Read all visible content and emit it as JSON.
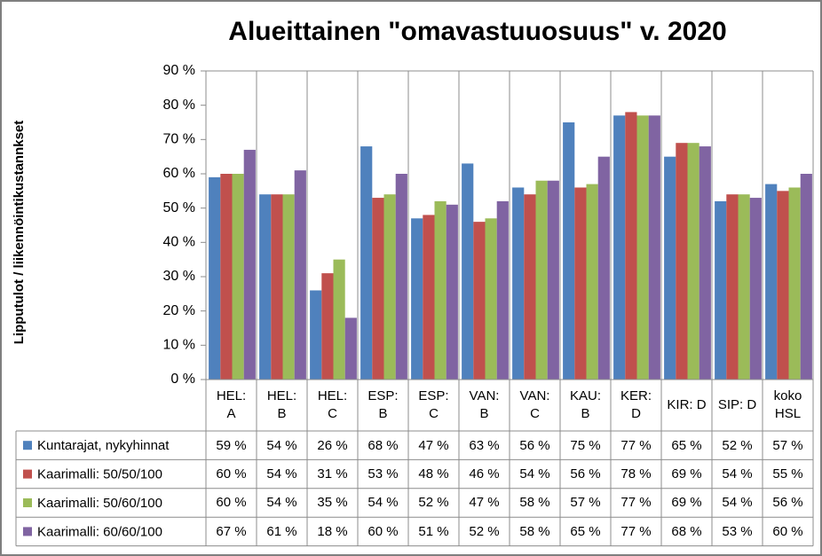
{
  "chart_data": {
    "type": "bar",
    "title": "Alueittainen \"omavastuuosuus\" v. 2020",
    "y_label": "Lipputulot / liikennöintikustannkset",
    "categories": [
      "HEL: A",
      "HEL: B",
      "HEL: C",
      "ESP: B",
      "ESP: C",
      "VAN: B",
      "VAN: C",
      "KAU: B",
      "KER: D",
      "KIR: D",
      "SIP: D",
      "koko HSL"
    ],
    "ylim": [
      0,
      90
    ],
    "yticks": [
      {
        "value": 0,
        "label": "0 %"
      },
      {
        "value": 10,
        "label": "10 %"
      },
      {
        "value": 20,
        "label": "20 %"
      },
      {
        "value": 30,
        "label": "30 %"
      },
      {
        "value": 40,
        "label": "40 %"
      },
      {
        "value": 50,
        "label": "50 %"
      },
      {
        "value": 60,
        "label": "60 %"
      },
      {
        "value": 70,
        "label": "70 %"
      },
      {
        "value": 80,
        "label": "80 %"
      },
      {
        "value": 90,
        "label": "90 %"
      }
    ],
    "series": [
      {
        "name": "Kuntarajat, nykyhinnat",
        "color": "#4f81bd",
        "values": [
          59,
          54,
          26,
          68,
          47,
          63,
          56,
          75,
          77,
          65,
          52,
          57
        ],
        "value_labels": [
          "59 %",
          "54 %",
          "26 %",
          "68 %",
          "47 %",
          "63 %",
          "56 %",
          "75 %",
          "77 %",
          "65 %",
          "52 %",
          "57 %"
        ]
      },
      {
        "name": "Kaarimalli: 50/50/100",
        "color": "#c0504d",
        "values": [
          60,
          54,
          31,
          53,
          48,
          46,
          54,
          56,
          78,
          69,
          54,
          55
        ],
        "value_labels": [
          "60 %",
          "54 %",
          "31 %",
          "53 %",
          "48 %",
          "46 %",
          "54 %",
          "56 %",
          "78 %",
          "69 %",
          "54 %",
          "55 %"
        ]
      },
      {
        "name": "Kaarimalli: 50/60/100",
        "color": "#9bbb59",
        "values": [
          60,
          54,
          35,
          54,
          52,
          47,
          58,
          57,
          77,
          69,
          54,
          56
        ],
        "value_labels": [
          "60 %",
          "54 %",
          "35 %",
          "54 %",
          "52 %",
          "47 %",
          "58 %",
          "57 %",
          "77 %",
          "69 %",
          "54 %",
          "56 %"
        ]
      },
      {
        "name": "Kaarimalli: 60/60/100",
        "color": "#8064a2",
        "values": [
          67,
          61,
          18,
          60,
          51,
          52,
          58,
          65,
          77,
          68,
          53,
          60
        ],
        "value_labels": [
          "67 %",
          "61 %",
          "18 %",
          "60 %",
          "51 %",
          "52 %",
          "58 %",
          "65 %",
          "77 %",
          "68 %",
          "53 %",
          "60 %"
        ]
      }
    ]
  }
}
